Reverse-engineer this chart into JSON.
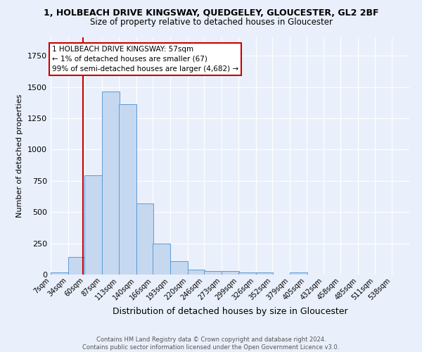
{
  "title_line1": "1, HOLBEACH DRIVE KINGSWAY, QUEDGELEY, GLOUCESTER, GL2 2BF",
  "title_line2": "Size of property relative to detached houses in Gloucester",
  "xlabel": "Distribution of detached houses by size in Gloucester",
  "ylabel": "Number of detached properties",
  "bin_labels": [
    "7sqm",
    "34sqm",
    "60sqm",
    "87sqm",
    "113sqm",
    "140sqm",
    "166sqm",
    "193sqm",
    "220sqm",
    "246sqm",
    "273sqm",
    "299sqm",
    "326sqm",
    "352sqm",
    "379sqm",
    "405sqm",
    "432sqm",
    "458sqm",
    "485sqm",
    "511sqm",
    "538sqm"
  ],
  "bin_edges": [
    7,
    34,
    60,
    87,
    113,
    140,
    166,
    193,
    220,
    246,
    273,
    299,
    326,
    352,
    379,
    405,
    432,
    458,
    485,
    511,
    538
  ],
  "bar_heights": [
    15,
    140,
    795,
    1465,
    1365,
    570,
    248,
    108,
    40,
    28,
    28,
    15,
    18,
    0,
    18,
    0,
    0,
    0,
    0,
    0
  ],
  "bar_color": "#c5d8f0",
  "bar_edge_color": "#5b9bd5",
  "property_size": 57,
  "red_line_color": "#cc0000",
  "annotation_line1": "1 HOLBEACH DRIVE KINGSWAY: 57sqm",
  "annotation_line2": "← 1% of detached houses are smaller (67)",
  "annotation_line3": "99% of semi-detached houses are larger (4,682) →",
  "annotation_box_color": "white",
  "annotation_box_edge_color": "#cc0000",
  "ylim": [
    0,
    1900
  ],
  "background_color": "#eaf0fb",
  "grid_color": "white",
  "footer_line1": "Contains HM Land Registry data © Crown copyright and database right 2024.",
  "footer_line2": "Contains public sector information licensed under the Open Government Licence v3.0."
}
